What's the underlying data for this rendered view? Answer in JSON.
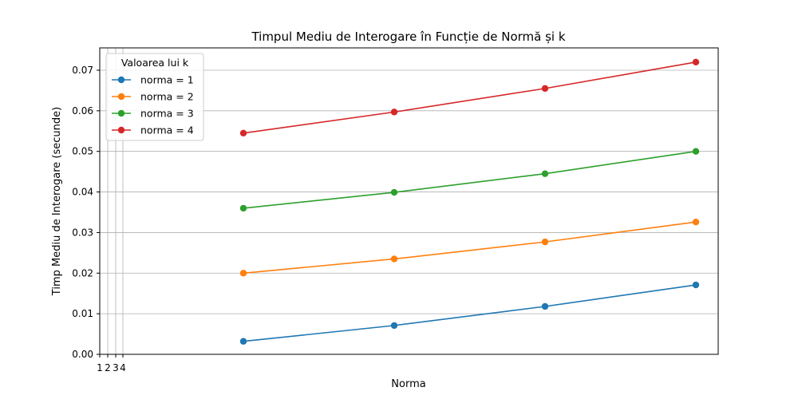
{
  "chart_data": {
    "type": "line",
    "title": "Timpul Mediu de Interogare în Funcție de Normă și k",
    "xlabel": "Norma",
    "ylabel": "Timp Mediu de Interogare (secunde)",
    "x_ticks": [
      "1",
      "2",
      "3",
      "4"
    ],
    "ylim": [
      0,
      0.0755
    ],
    "yticks": [
      "0.00",
      "0.01",
      "0.02",
      "0.03",
      "0.04",
      "0.05",
      "0.06",
      "0.07"
    ],
    "grid": true,
    "legend": {
      "title": "Valoarea lui k",
      "placement": "top-left"
    },
    "series": [
      {
        "name": "norma = 1",
        "color": "#1f77b4",
        "values": [
          0.0032,
          0.0071,
          0.0118,
          0.0171
        ]
      },
      {
        "name": "norma = 2",
        "color": "#ff7f0e",
        "values": [
          0.02,
          0.0235,
          0.0277,
          0.0326
        ]
      },
      {
        "name": "norma = 3",
        "color": "#2ca02c",
        "values": [
          0.036,
          0.0399,
          0.0445,
          0.05
        ]
      },
      {
        "name": "norma = 4",
        "color": "#d62728",
        "values": [
          0.0545,
          0.0597,
          0.0655,
          0.072
        ]
      }
    ]
  }
}
